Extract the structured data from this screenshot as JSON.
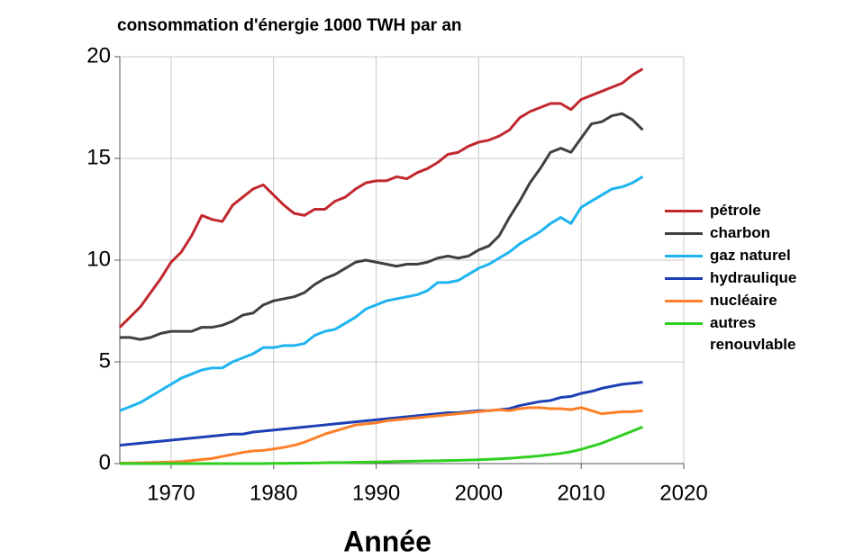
{
  "chart_data": {
    "type": "line",
    "title": "consommation d'énergie 1000 TWH par an",
    "x_label": "Année",
    "x": [
      1965,
      1966,
      1967,
      1968,
      1969,
      1970,
      1971,
      1972,
      1973,
      1974,
      1975,
      1976,
      1977,
      1978,
      1979,
      1980,
      1981,
      1982,
      1983,
      1984,
      1985,
      1986,
      1987,
      1988,
      1989,
      1990,
      1991,
      1992,
      1993,
      1994,
      1995,
      1996,
      1997,
      1998,
      1999,
      2000,
      2001,
      2002,
      2003,
      2004,
      2005,
      2006,
      2007,
      2008,
      2009,
      2010,
      2011,
      2012,
      2013,
      2014,
      2015,
      2016
    ],
    "series": [
      {
        "name": "pétrole",
        "color": "#c0282d",
        "values": [
          6.7,
          7.2,
          7.7,
          8.4,
          9.1,
          9.9,
          10.4,
          11.2,
          12.2,
          12.0,
          11.9,
          12.7,
          13.1,
          13.5,
          13.7,
          13.2,
          12.7,
          12.3,
          12.2,
          12.5,
          12.5,
          12.9,
          13.1,
          13.5,
          13.8,
          13.9,
          13.9,
          14.1,
          14.0,
          14.3,
          14.5,
          14.8,
          15.2,
          15.3,
          15.6,
          15.8,
          15.9,
          16.1,
          16.4,
          17.0,
          17.3,
          17.5,
          17.7,
          17.7,
          17.4,
          17.9,
          18.1,
          18.3,
          18.5,
          18.7,
          19.1,
          19.4
        ]
      },
      {
        "name": "charbon",
        "color": "#404040",
        "values": [
          6.2,
          6.2,
          6.1,
          6.2,
          6.4,
          6.5,
          6.5,
          6.5,
          6.7,
          6.7,
          6.8,
          7.0,
          7.3,
          7.4,
          7.8,
          8.0,
          8.1,
          8.2,
          8.4,
          8.8,
          9.1,
          9.3,
          9.6,
          9.9,
          10.0,
          9.9,
          9.8,
          9.7,
          9.8,
          9.8,
          9.9,
          10.1,
          10.2,
          10.1,
          10.2,
          10.5,
          10.7,
          11.2,
          12.1,
          12.9,
          13.8,
          14.5,
          15.3,
          15.5,
          15.3,
          16.0,
          16.7,
          16.8,
          17.1,
          17.2,
          16.9,
          16.4
        ]
      },
      {
        "name": "gaz naturel",
        "color": "#1eb4f0",
        "values": [
          2.6,
          2.8,
          3.0,
          3.3,
          3.6,
          3.9,
          4.2,
          4.4,
          4.6,
          4.7,
          4.7,
          5.0,
          5.2,
          5.4,
          5.7,
          5.7,
          5.8,
          5.8,
          5.9,
          6.3,
          6.5,
          6.6,
          6.9,
          7.2,
          7.6,
          7.8,
          8.0,
          8.1,
          8.2,
          8.3,
          8.5,
          8.9,
          8.9,
          9.0,
          9.3,
          9.6,
          9.8,
          10.1,
          10.4,
          10.8,
          11.1,
          11.4,
          11.8,
          12.1,
          11.8,
          12.6,
          12.9,
          13.2,
          13.5,
          13.6,
          13.8,
          14.1
        ]
      },
      {
        "name": "hydraulique",
        "color": "#1c3fb5",
        "values": [
          0.9,
          0.95,
          1.0,
          1.05,
          1.1,
          1.15,
          1.2,
          1.25,
          1.3,
          1.35,
          1.4,
          1.45,
          1.45,
          1.55,
          1.6,
          1.65,
          1.7,
          1.75,
          1.8,
          1.85,
          1.9,
          1.95,
          2.0,
          2.05,
          2.1,
          2.15,
          2.2,
          2.25,
          2.3,
          2.35,
          2.4,
          2.45,
          2.5,
          2.5,
          2.55,
          2.6,
          2.6,
          2.65,
          2.7,
          2.85,
          2.95,
          3.05,
          3.1,
          3.25,
          3.3,
          3.45,
          3.55,
          3.7,
          3.8,
          3.9,
          3.95,
          4.0
        ]
      },
      {
        "name": "nucléaire",
        "color": "#ff7f27",
        "values": [
          0.02,
          0.03,
          0.04,
          0.05,
          0.06,
          0.08,
          0.1,
          0.15,
          0.2,
          0.25,
          0.35,
          0.45,
          0.55,
          0.62,
          0.65,
          0.72,
          0.8,
          0.9,
          1.05,
          1.25,
          1.45,
          1.6,
          1.75,
          1.9,
          1.95,
          2.0,
          2.1,
          2.15,
          2.2,
          2.25,
          2.3,
          2.35,
          2.4,
          2.45,
          2.5,
          2.55,
          2.6,
          2.65,
          2.6,
          2.7,
          2.75,
          2.75,
          2.7,
          2.7,
          2.65,
          2.75,
          2.6,
          2.45,
          2.5,
          2.55,
          2.55,
          2.6
        ]
      },
      {
        "name": "autres renouvlable",
        "color": "#2fcf20",
        "values": [
          0,
          0,
          0,
          0,
          0,
          0,
          0,
          0,
          0,
          0,
          0,
          0,
          0,
          0,
          0,
          0.01,
          0.01,
          0.02,
          0.02,
          0.03,
          0.04,
          0.05,
          0.05,
          0.06,
          0.07,
          0.08,
          0.09,
          0.1,
          0.11,
          0.12,
          0.13,
          0.14,
          0.15,
          0.16,
          0.17,
          0.19,
          0.21,
          0.23,
          0.26,
          0.3,
          0.34,
          0.38,
          0.44,
          0.5,
          0.58,
          0.7,
          0.85,
          1.0,
          1.2,
          1.4,
          1.6,
          1.8
        ]
      }
    ],
    "xlim": [
      1965,
      2020
    ],
    "xticks": [
      1970,
      1980,
      1990,
      2000,
      2010,
      2020
    ],
    "ylim": [
      0,
      20
    ],
    "yticks": [
      0,
      5,
      10,
      15,
      20
    ],
    "grid": true,
    "legend": "right"
  }
}
